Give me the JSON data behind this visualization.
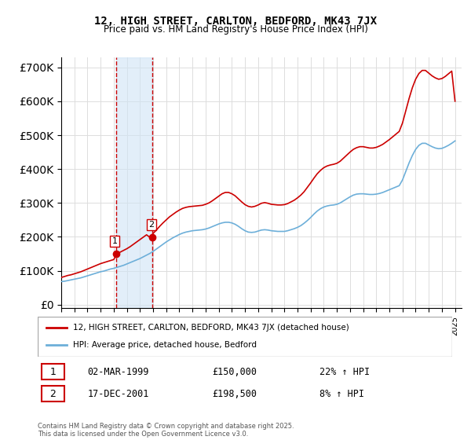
{
  "title": "12, HIGH STREET, CARLTON, BEDFORD, MK43 7JX",
  "subtitle": "Price paid vs. HM Land Registry's House Price Index (HPI)",
  "ylabel_prefix": "£",
  "yticks": [
    0,
    100000,
    200000,
    300000,
    400000,
    500000,
    600000,
    700000
  ],
  "ytick_labels": [
    "£0",
    "£100K",
    "£200K",
    "£300K",
    "£400K",
    "£500K",
    "£600K",
    "£700K"
  ],
  "ylim": [
    -10000,
    730000
  ],
  "xlim_start": 1995.0,
  "xlim_end": 2025.5,
  "purchases": [
    {
      "label": "1",
      "date": 1999.17,
      "price": 150000,
      "date_str": "02-MAR-1999",
      "price_str": "£150,000",
      "hpi_str": "22% ↑ HPI"
    },
    {
      "label": "2",
      "date": 2001.96,
      "price": 198500,
      "date_str": "17-DEC-2001",
      "price_str": "£198,500",
      "hpi_str": "8% ↑ HPI"
    }
  ],
  "hpi_color": "#6dafd9",
  "price_color": "#cc0000",
  "vline_color_1": "#cc0000",
  "vline_color_2": "#cc0000",
  "shade_color": "#d0e4f5",
  "background_color": "#ffffff",
  "grid_color": "#dddddd",
  "legend_label_price": "12, HIGH STREET, CARLTON, BEDFORD, MK43 7JX (detached house)",
  "legend_label_hpi": "HPI: Average price, detached house, Bedford",
  "footer": "Contains HM Land Registry data © Crown copyright and database right 2025.\nThis data is licensed under the Open Government Licence v3.0.",
  "hpi_series_x": [
    1995,
    1995.25,
    1995.5,
    1995.75,
    1996,
    1996.25,
    1996.5,
    1996.75,
    1997,
    1997.25,
    1997.5,
    1997.75,
    1998,
    1998.25,
    1998.5,
    1998.75,
    1999,
    1999.25,
    1999.5,
    1999.75,
    2000,
    2000.25,
    2000.5,
    2000.75,
    2001,
    2001.25,
    2001.5,
    2001.75,
    2002,
    2002.25,
    2002.5,
    2002.75,
    2003,
    2003.25,
    2003.5,
    2003.75,
    2004,
    2004.25,
    2004.5,
    2004.75,
    2005,
    2005.25,
    2005.5,
    2005.75,
    2006,
    2006.25,
    2006.5,
    2006.75,
    2007,
    2007.25,
    2007.5,
    2007.75,
    2008,
    2008.25,
    2008.5,
    2008.75,
    2009,
    2009.25,
    2009.5,
    2009.75,
    2010,
    2010.25,
    2010.5,
    2010.75,
    2011,
    2011.25,
    2011.5,
    2011.75,
    2012,
    2012.25,
    2012.5,
    2012.75,
    2013,
    2013.25,
    2013.5,
    2013.75,
    2014,
    2014.25,
    2014.5,
    2014.75,
    2015,
    2015.25,
    2015.5,
    2015.75,
    2016,
    2016.25,
    2016.5,
    2016.75,
    2017,
    2017.25,
    2017.5,
    2017.75,
    2018,
    2018.25,
    2018.5,
    2018.75,
    2019,
    2019.25,
    2019.5,
    2019.75,
    2020,
    2020.25,
    2020.5,
    2020.75,
    2021,
    2021.25,
    2021.5,
    2021.75,
    2022,
    2022.25,
    2022.5,
    2022.75,
    2023,
    2023.25,
    2023.5,
    2023.75,
    2024,
    2024.25,
    2024.5,
    2024.75,
    2025
  ],
  "hpi_series_y": [
    68000,
    69000,
    71000,
    73000,
    75000,
    77000,
    79000,
    82000,
    85000,
    88000,
    91000,
    94000,
    97000,
    99000,
    102000,
    105000,
    107000,
    110000,
    113000,
    116000,
    120000,
    124000,
    128000,
    132000,
    136000,
    141000,
    146000,
    151000,
    157000,
    164000,
    171000,
    178000,
    185000,
    191000,
    197000,
    202000,
    207000,
    211000,
    214000,
    216000,
    218000,
    219000,
    220000,
    221000,
    223000,
    226000,
    230000,
    234000,
    238000,
    241000,
    243000,
    243000,
    241000,
    237000,
    231000,
    224000,
    218000,
    214000,
    213000,
    214000,
    217000,
    220000,
    221000,
    220000,
    218000,
    217000,
    216000,
    216000,
    216000,
    218000,
    221000,
    224000,
    228000,
    233000,
    240000,
    248000,
    257000,
    267000,
    276000,
    283000,
    288000,
    291000,
    293000,
    294000,
    296000,
    300000,
    306000,
    312000,
    318000,
    323000,
    326000,
    327000,
    327000,
    326000,
    325000,
    325000,
    326000,
    328000,
    331000,
    335000,
    339000,
    343000,
    347000,
    351000,
    368000,
    393000,
    418000,
    440000,
    458000,
    470000,
    476000,
    476000,
    471000,
    466000,
    462000,
    460000,
    461000,
    465000,
    470000,
    476000,
    483000
  ],
  "price_series_x": [
    1995,
    1995.25,
    1995.5,
    1995.75,
    1996,
    1996.25,
    1996.5,
    1996.75,
    1997,
    1997.25,
    1997.5,
    1997.75,
    1998,
    1998.25,
    1998.5,
    1998.75,
    1999,
    1999.25,
    1999.5,
    1999.75,
    2000,
    2000.25,
    2000.5,
    2000.75,
    2001,
    2001.25,
    2001.5,
    2001.75,
    2002,
    2002.25,
    2002.5,
    2002.75,
    2003,
    2003.25,
    2003.5,
    2003.75,
    2004,
    2004.25,
    2004.5,
    2004.75,
    2005,
    2005.25,
    2005.5,
    2005.75,
    2006,
    2006.25,
    2006.5,
    2006.75,
    2007,
    2007.25,
    2007.5,
    2007.75,
    2008,
    2008.25,
    2008.5,
    2008.75,
    2009,
    2009.25,
    2009.5,
    2009.75,
    2010,
    2010.25,
    2010.5,
    2010.75,
    2011,
    2011.25,
    2011.5,
    2011.75,
    2012,
    2012.25,
    2012.5,
    2012.75,
    2013,
    2013.25,
    2013.5,
    2013.75,
    2014,
    2014.25,
    2014.5,
    2014.75,
    2015,
    2015.25,
    2015.5,
    2015.75,
    2016,
    2016.25,
    2016.5,
    2016.75,
    2017,
    2017.25,
    2017.5,
    2017.75,
    2018,
    2018.25,
    2018.5,
    2018.75,
    2019,
    2019.25,
    2019.5,
    2019.75,
    2020,
    2020.25,
    2020.5,
    2020.75,
    2021,
    2021.25,
    2021.5,
    2021.75,
    2022,
    2022.25,
    2022.5,
    2022.75,
    2023,
    2023.25,
    2023.5,
    2023.75,
    2024,
    2024.25,
    2024.5,
    2024.75,
    2025
  ],
  "price_series_y": [
    80000,
    83000,
    86000,
    88000,
    91000,
    94000,
    97000,
    101000,
    105000,
    109000,
    113000,
    117000,
    121000,
    124000,
    127000,
    130000,
    133000,
    150000,
    155000,
    160000,
    165000,
    171000,
    178000,
    185000,
    192000,
    199000,
    206000,
    198500,
    210000,
    220000,
    231000,
    241000,
    250000,
    259000,
    266000,
    273000,
    279000,
    284000,
    287000,
    289000,
    290000,
    291000,
    292000,
    293000,
    296000,
    300000,
    306000,
    313000,
    320000,
    327000,
    331000,
    331000,
    327000,
    321000,
    312000,
    303000,
    295000,
    290000,
    288000,
    290000,
    294000,
    299000,
    301000,
    299000,
    296000,
    295000,
    294000,
    294000,
    295000,
    298000,
    303000,
    308000,
    315000,
    323000,
    333000,
    346000,
    359000,
    373000,
    386000,
    396000,
    404000,
    409000,
    412000,
    414000,
    417000,
    423000,
    432000,
    441000,
    450000,
    458000,
    463000,
    466000,
    466000,
    464000,
    462000,
    462000,
    464000,
    468000,
    473000,
    480000,
    487000,
    495000,
    503000,
    511000,
    536000,
    572000,
    608000,
    640000,
    665000,
    682000,
    691000,
    691000,
    683000,
    675000,
    669000,
    665000,
    667000,
    673000,
    681000,
    689000,
    600000
  ]
}
